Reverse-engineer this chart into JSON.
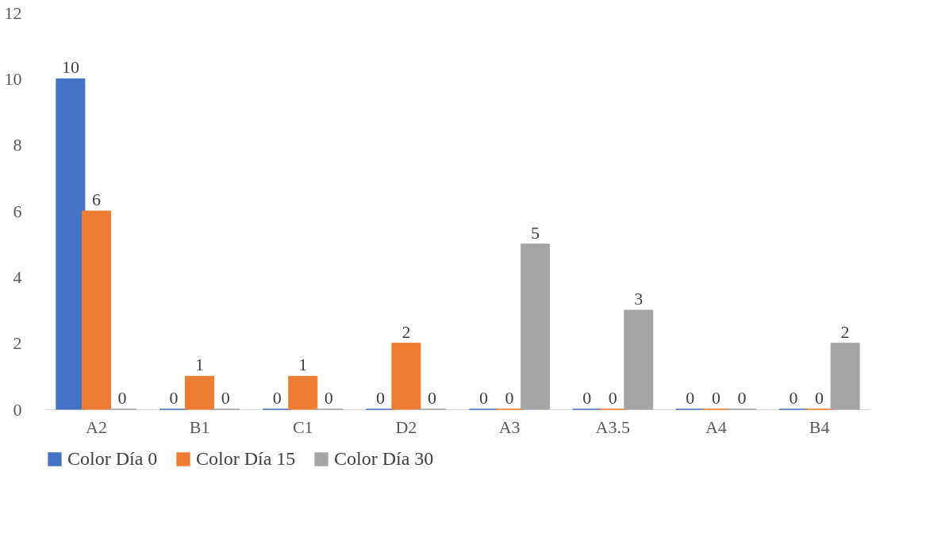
{
  "chart_data": {
    "type": "bar",
    "categories": [
      "A2",
      "B1",
      "C1",
      "D2",
      "A3",
      "A3.5",
      "A4",
      "B4"
    ],
    "series": [
      {
        "name": "Color Día 0",
        "color": "#4472c4",
        "values": [
          10,
          0,
          0,
          0,
          0,
          0,
          0,
          0
        ]
      },
      {
        "name": "Color Día 15",
        "color": "#ed7d31",
        "values": [
          6,
          1,
          1,
          2,
          0,
          0,
          0,
          0
        ]
      },
      {
        "name": "Color Día 30",
        "color": "#a5a5a5",
        "values": [
          0,
          0,
          0,
          0,
          5,
          3,
          0,
          2
        ]
      }
    ],
    "ylim": [
      0,
      12
    ],
    "yticks": [
      0,
      2,
      4,
      6,
      8,
      10,
      12
    ],
    "grid": false,
    "legend": "bottom",
    "data_labels": true
  }
}
